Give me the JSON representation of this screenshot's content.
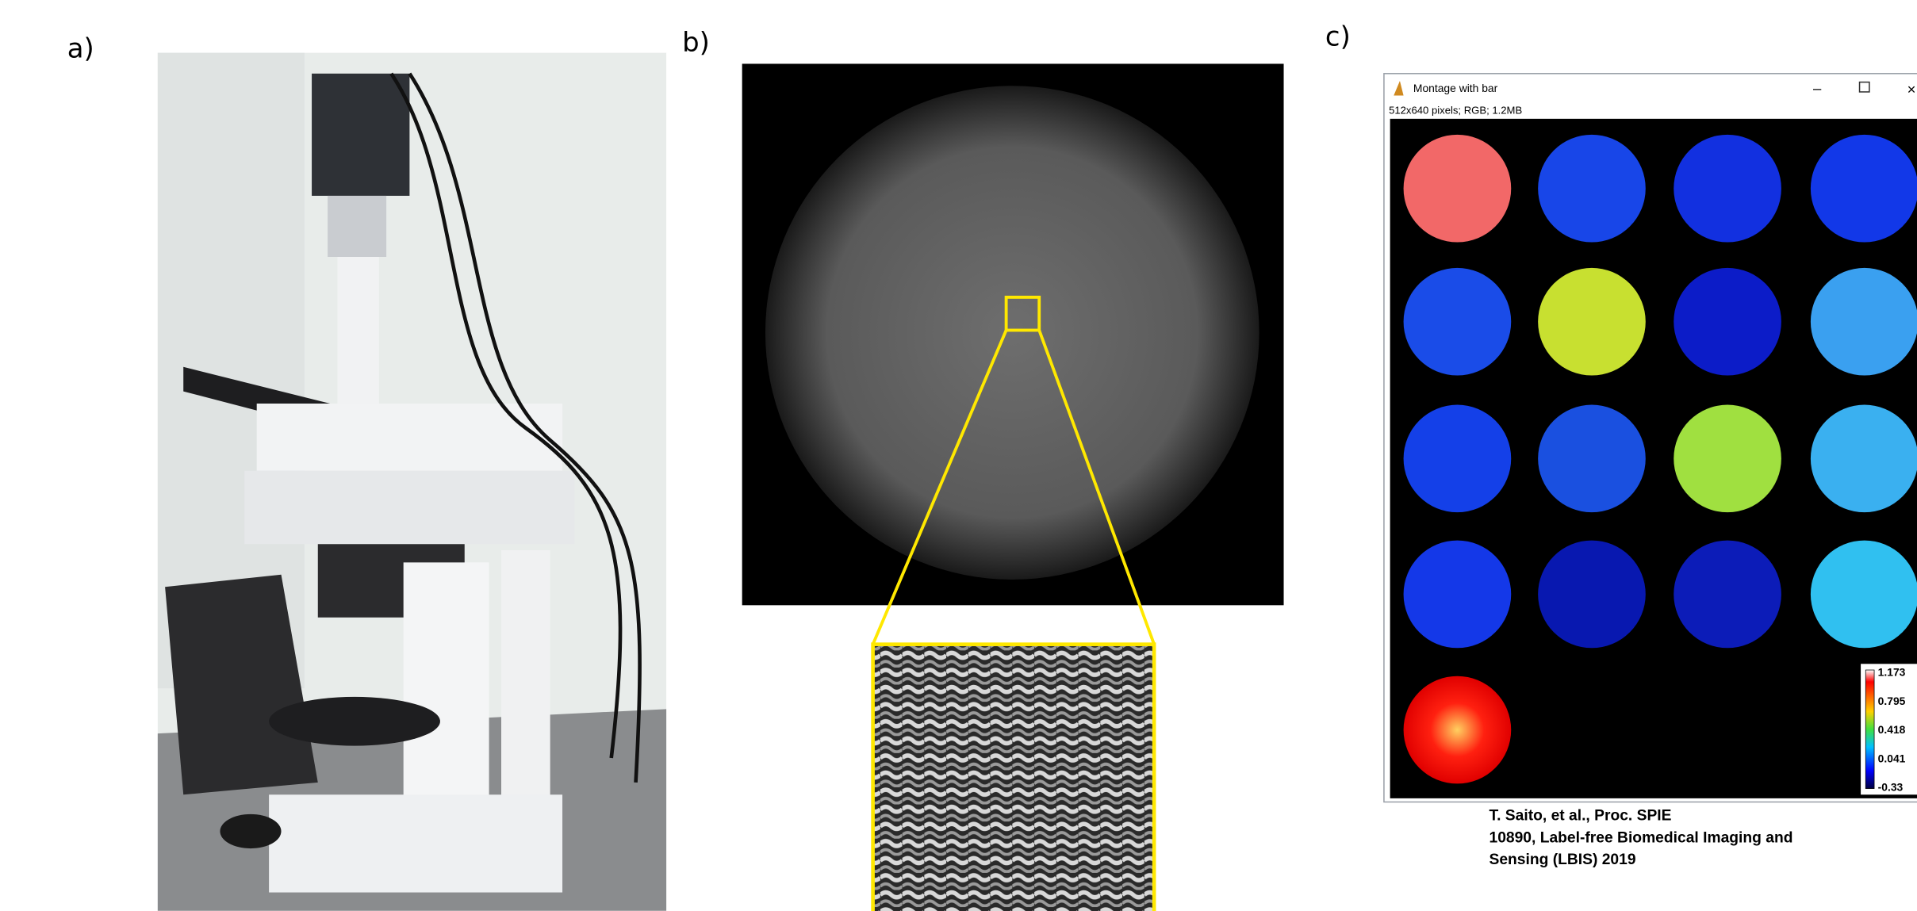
{
  "panels": {
    "a": {
      "label": "a)"
    },
    "b": {
      "label": "b)"
    },
    "c": {
      "label": "c)",
      "window": {
        "title": "Montage with bar",
        "info": "512x640 pixels; RGB; 1.2MB",
        "colorbar": [
          "1.173",
          "0.795",
          "0.418",
          "0.041",
          "-0.33"
        ]
      }
    }
  },
  "citation": [
    "T. Saito, et al., Proc. SPIE",
    "10890, Label-free Biomedical Imaging and",
    "Sensing (LBIS) 2019"
  ]
}
